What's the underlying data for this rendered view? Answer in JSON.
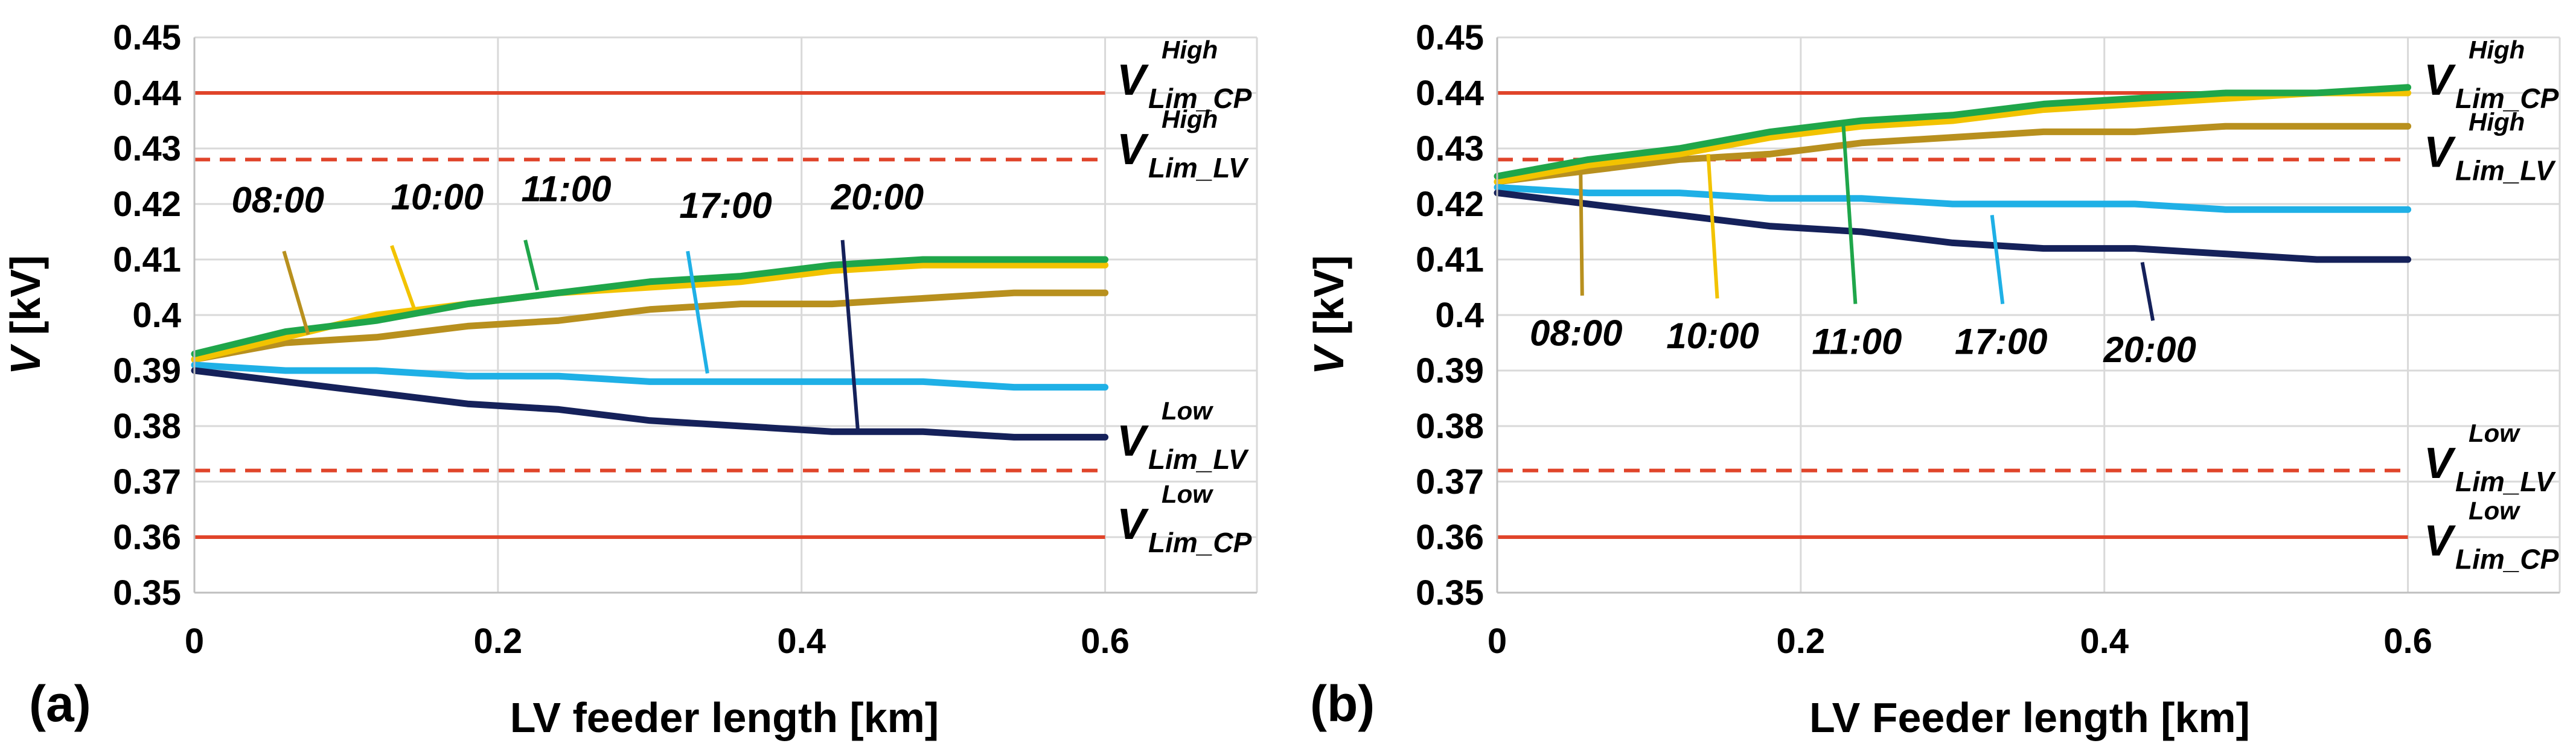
{
  "chart_data": [
    {
      "panel_label": "(a)",
      "type": "line",
      "xlabel": "LV feeder length [km]",
      "ylabel": "V [kV]",
      "xlim": [
        0,
        0.7
      ],
      "ylim": [
        0.35,
        0.45
      ],
      "xticks": [
        "0",
        "0.2",
        "0.4",
        "0.6"
      ],
      "xtick_values": [
        0,
        0.2,
        0.4,
        0.6
      ],
      "yticks": [
        "0.35",
        "0.36",
        "0.37",
        "0.38",
        "0.39",
        "0.4",
        "0.41",
        "0.42",
        "0.43",
        "0.44",
        "0.45"
      ],
      "ytick_values": [
        0.35,
        0.36,
        0.37,
        0.38,
        0.39,
        0.4,
        0.41,
        0.42,
        0.43,
        0.44,
        0.45
      ],
      "grid": true,
      "x": [
        0,
        0.06,
        0.12,
        0.18,
        0.24,
        0.3,
        0.36,
        0.42,
        0.48,
        0.54,
        0.6
      ],
      "series": [
        {
          "name": "08:00",
          "color": "#b8901e",
          "values": [
            0.392,
            0.395,
            0.396,
            0.398,
            0.399,
            0.401,
            0.402,
            0.402,
            0.403,
            0.404,
            0.404
          ]
        },
        {
          "name": "10:00",
          "color": "#f2c300",
          "values": [
            0.392,
            0.396,
            0.4,
            0.402,
            0.404,
            0.405,
            0.406,
            0.408,
            0.409,
            0.409,
            0.409
          ]
        },
        {
          "name": "11:00",
          "color": "#1fa64a",
          "values": [
            0.393,
            0.397,
            0.399,
            0.402,
            0.404,
            0.406,
            0.407,
            0.409,
            0.41,
            0.41,
            0.41
          ]
        },
        {
          "name": "17:00",
          "color": "#1fb0e6",
          "values": [
            0.391,
            0.39,
            0.39,
            0.389,
            0.389,
            0.388,
            0.388,
            0.388,
            0.388,
            0.387,
            0.387
          ]
        },
        {
          "name": "20:00",
          "color": "#15215a",
          "values": [
            0.39,
            0.388,
            0.386,
            0.384,
            0.383,
            0.381,
            0.38,
            0.379,
            0.379,
            0.378,
            0.378
          ]
        }
      ],
      "annotations": [
        {
          "text": "08:00",
          "color": "#b8901e",
          "label_x": 0.055,
          "label_y": 0.4185,
          "from": [
            0.059,
            0.4115
          ],
          "to": [
            0.075,
            0.3965
          ]
        },
        {
          "text": "10:00",
          "color": "#f2c300",
          "label_x": 0.16,
          "label_y": 0.419,
          "from": [
            0.13,
            0.4125
          ],
          "to": [
            0.145,
            0.401
          ]
        },
        {
          "text": "11:00",
          "color": "#1fa64a",
          "label_x": 0.245,
          "label_y": 0.4205,
          "from": [
            0.218,
            0.4135
          ],
          "to": [
            0.226,
            0.4045
          ]
        },
        {
          "text": "17:00",
          "color": "#1fb0e6",
          "label_x": 0.35,
          "label_y": 0.4175,
          "from": [
            0.325,
            0.4115
          ],
          "to": [
            0.338,
            0.3895
          ]
        },
        {
          "text": "20:00",
          "color": "#15215a",
          "label_x": 0.45,
          "label_y": 0.419,
          "from": [
            0.427,
            0.4135
          ],
          "to": [
            0.437,
            0.3795
          ]
        }
      ],
      "limits": [
        {
          "value": 0.44,
          "style": "solid",
          "color": "#e0442a",
          "main": "V",
          "sup": "High",
          "sub": "Lim_CP"
        },
        {
          "value": 0.428,
          "style": "dashed",
          "color": "#e0442a",
          "main": "V",
          "sup": "High",
          "sub": "Lim_LV"
        },
        {
          "value": 0.372,
          "style": "dashed",
          "color": "#e0442a",
          "main": "V",
          "sup": "Low",
          "sub": "Lim_LV"
        },
        {
          "value": 0.36,
          "style": "solid",
          "color": "#e0442a",
          "main": "V",
          "sup": "Low",
          "sub": "Lim_CP"
        }
      ],
      "limit_labels_y": [
        0.4425,
        0.43,
        0.3775,
        0.3625
      ]
    },
    {
      "panel_label": "(b)",
      "type": "line",
      "xlabel": "LV Feeder length [km]",
      "ylabel": "V [kV]",
      "xlim": [
        0,
        0.7
      ],
      "ylim": [
        0.35,
        0.45
      ],
      "xticks": [
        "0",
        "0.2",
        "0.4",
        "0.6"
      ],
      "xtick_values": [
        0,
        0.2,
        0.4,
        0.6
      ],
      "yticks": [
        "0.35",
        "0.36",
        "0.37",
        "0.38",
        "0.39",
        "0.4",
        "0.41",
        "0.42",
        "0.43",
        "0.44",
        "0.45"
      ],
      "ytick_values": [
        0.35,
        0.36,
        0.37,
        0.38,
        0.39,
        0.4,
        0.41,
        0.42,
        0.43,
        0.44,
        0.45
      ],
      "grid": true,
      "x": [
        0,
        0.06,
        0.12,
        0.18,
        0.24,
        0.3,
        0.36,
        0.42,
        0.48,
        0.54,
        0.6
      ],
      "series": [
        {
          "name": "08:00",
          "color": "#b8901e",
          "values": [
            0.424,
            0.426,
            0.428,
            0.429,
            0.431,
            0.432,
            0.433,
            0.433,
            0.434,
            0.434,
            0.434
          ]
        },
        {
          "name": "10:00",
          "color": "#f2c300",
          "values": [
            0.424,
            0.427,
            0.429,
            0.432,
            0.434,
            0.435,
            0.437,
            0.438,
            0.439,
            0.44,
            0.44
          ]
        },
        {
          "name": "11:00",
          "color": "#1fa64a",
          "values": [
            0.425,
            0.428,
            0.43,
            0.433,
            0.435,
            0.436,
            0.438,
            0.439,
            0.44,
            0.44,
            0.441
          ]
        },
        {
          "name": "17:00",
          "color": "#1fb0e6",
          "values": [
            0.423,
            0.422,
            0.422,
            0.421,
            0.421,
            0.42,
            0.42,
            0.42,
            0.419,
            0.419,
            0.419
          ]
        },
        {
          "name": "20:00",
          "color": "#15215a",
          "values": [
            0.422,
            0.42,
            0.418,
            0.416,
            0.415,
            0.413,
            0.412,
            0.412,
            0.411,
            0.41,
            0.41
          ]
        }
      ],
      "annotations": [
        {
          "text": "08:00",
          "color": "#b8901e",
          "label_x": 0.052,
          "label_y": 0.3945,
          "from": [
            0.056,
            0.4035
          ],
          "to": [
            0.055,
            0.4255
          ]
        },
        {
          "text": "10:00",
          "color": "#f2c300",
          "label_x": 0.142,
          "label_y": 0.394,
          "from": [
            0.145,
            0.403
          ],
          "to": [
            0.139,
            0.429
          ]
        },
        {
          "text": "11:00",
          "color": "#1fa64a",
          "label_x": 0.237,
          "label_y": 0.393,
          "from": [
            0.236,
            0.402
          ],
          "to": [
            0.228,
            0.4345
          ]
        },
        {
          "text": "17:00",
          "color": "#1fb0e6",
          "label_x": 0.332,
          "label_y": 0.393,
          "from": [
            0.333,
            0.402
          ],
          "to": [
            0.326,
            0.418
          ]
        },
        {
          "text": "20:00",
          "color": "#15215a",
          "label_x": 0.43,
          "label_y": 0.3915,
          "from": [
            0.432,
            0.399
          ],
          "to": [
            0.425,
            0.4095
          ]
        }
      ],
      "limits": [
        {
          "value": 0.44,
          "style": "solid",
          "color": "#e0442a",
          "main": "V",
          "sup": "High",
          "sub": "Lim_CP"
        },
        {
          "value": 0.428,
          "style": "dashed",
          "color": "#e0442a",
          "main": "V",
          "sup": "High",
          "sub": "Lim_LV"
        },
        {
          "value": 0.372,
          "style": "dashed",
          "color": "#e0442a",
          "main": "V",
          "sup": "Low",
          "sub": "Lim_LV"
        },
        {
          "value": 0.36,
          "style": "solid",
          "color": "#e0442a",
          "main": "V",
          "sup": "Low",
          "sub": "Lim_CP"
        }
      ],
      "limit_labels_y": [
        0.4425,
        0.4295,
        0.3735,
        0.3595
      ]
    }
  ]
}
